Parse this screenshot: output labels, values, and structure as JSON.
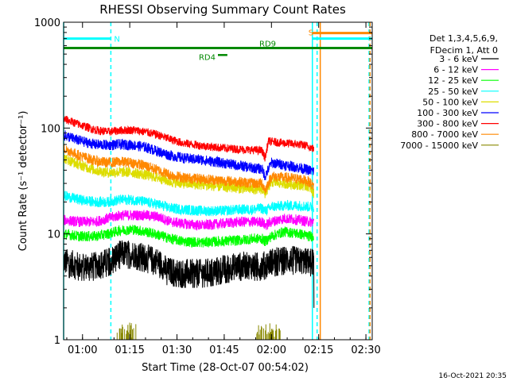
{
  "chart_data": {
    "type": "line",
    "title": "RHESSI Observing Summary Count Rates",
    "xlabel": "Start Time (28-Oct-07 00:54:02)",
    "ylabel": "Count Rate (s⁻¹ detector⁻¹)",
    "y_scale": "log",
    "ylim": [
      1,
      1000
    ],
    "xlim_minutes": [
      0,
      98
    ],
    "x_ticks": [
      {
        "minute": 6,
        "label": "01:00"
      },
      {
        "minute": 21,
        "label": "01:15"
      },
      {
        "minute": 36,
        "label": "01:30"
      },
      {
        "minute": 51,
        "label": "01:45"
      },
      {
        "minute": 66,
        "label": "02:00"
      },
      {
        "minute": 81,
        "label": "02:15"
      },
      {
        "minute": 96,
        "label": "02:30"
      }
    ],
    "y_ticks": [
      {
        "value": 1,
        "label": "1"
      },
      {
        "value": 10,
        "label": "10"
      },
      {
        "value": 100,
        "label": "100"
      },
      {
        "value": 1000,
        "label": "1000"
      }
    ],
    "legend_header": [
      "Det 1,3,4,5,6,9,",
      "FDecim 1, Att 0"
    ],
    "legend_position": "right",
    "series": [
      {
        "name": "3 - 6 keV",
        "color": "#000000",
        "points": [
          [
            0,
            5.5
          ],
          [
            5,
            5
          ],
          [
            10,
            5
          ],
          [
            14,
            5.5
          ],
          [
            18,
            6.5
          ],
          [
            22,
            6.5
          ],
          [
            26,
            6
          ],
          [
            30,
            5.5
          ],
          [
            33,
            4.5
          ],
          [
            38,
            4.3
          ],
          [
            44,
            4.3
          ],
          [
            48,
            4.5
          ],
          [
            52,
            4.8
          ],
          [
            56,
            5
          ],
          [
            60,
            5
          ],
          [
            63,
            5
          ],
          [
            66,
            5.5
          ],
          [
            70,
            5.7
          ],
          [
            73,
            5.7
          ],
          [
            76,
            5.5
          ],
          [
            78,
            5.5
          ],
          [
            79.5,
            5.5
          ]
        ]
      },
      {
        "name": "6 - 12 keV",
        "color": "#ff00ff",
        "points": [
          [
            0,
            13.5
          ],
          [
            5,
            13
          ],
          [
            10,
            13
          ],
          [
            14,
            14
          ],
          [
            18,
            15
          ],
          [
            22,
            15
          ],
          [
            26,
            15
          ],
          [
            30,
            14.5
          ],
          [
            34,
            13
          ],
          [
            38,
            12.5
          ],
          [
            44,
            12
          ],
          [
            50,
            12.5
          ],
          [
            56,
            13
          ],
          [
            60,
            13
          ],
          [
            63,
            13
          ],
          [
            64,
            12
          ],
          [
            66,
            13
          ],
          [
            70,
            14
          ],
          [
            75,
            13.5
          ],
          [
            78,
            13
          ],
          [
            79.5,
            13
          ]
        ]
      },
      {
        "name": "12 - 25 keV",
        "color": "#00ff00",
        "points": [
          [
            0,
            10
          ],
          [
            5,
            9.5
          ],
          [
            10,
            9.5
          ],
          [
            14,
            10
          ],
          [
            18,
            10.8
          ],
          [
            22,
            11
          ],
          [
            26,
            10.5
          ],
          [
            30,
            9.8
          ],
          [
            34,
            9
          ],
          [
            38,
            8.5
          ],
          [
            44,
            8.3
          ],
          [
            50,
            8.5
          ],
          [
            56,
            8.7
          ],
          [
            60,
            9
          ],
          [
            63,
            9
          ],
          [
            64,
            8.5
          ],
          [
            66,
            9.5
          ],
          [
            70,
            10.5
          ],
          [
            75,
            10
          ],
          [
            78,
            9.5
          ],
          [
            79.5,
            9.5
          ]
        ]
      },
      {
        "name": "25 - 50 keV",
        "color": "#00ffff",
        "points": [
          [
            0,
            23
          ],
          [
            5,
            21
          ],
          [
            10,
            20
          ],
          [
            14,
            20
          ],
          [
            18,
            21
          ],
          [
            22,
            21
          ],
          [
            26,
            20
          ],
          [
            30,
            19
          ],
          [
            34,
            17.5
          ],
          [
            38,
            17
          ],
          [
            44,
            16.5
          ],
          [
            50,
            16.5
          ],
          [
            56,
            17
          ],
          [
            60,
            17
          ],
          [
            63,
            17.5
          ],
          [
            64,
            16.5
          ],
          [
            66,
            18
          ],
          [
            70,
            18.5
          ],
          [
            75,
            18.5
          ],
          [
            78,
            18
          ],
          [
            79.5,
            18
          ]
        ]
      },
      {
        "name": "50 - 100 keV",
        "color": "#dddd00",
        "points": [
          [
            0,
            52
          ],
          [
            5,
            45
          ],
          [
            10,
            40
          ],
          [
            14,
            38
          ],
          [
            18,
            38.5
          ],
          [
            22,
            38
          ],
          [
            26,
            36
          ],
          [
            30,
            34
          ],
          [
            34,
            31
          ],
          [
            38,
            30
          ],
          [
            44,
            29
          ],
          [
            50,
            28
          ],
          [
            56,
            27
          ],
          [
            60,
            26.5
          ],
          [
            63,
            26.5
          ],
          [
            64,
            24
          ],
          [
            66,
            31
          ],
          [
            70,
            30
          ],
          [
            75,
            29
          ],
          [
            78,
            28
          ],
          [
            79.5,
            24
          ]
        ]
      },
      {
        "name": "100 - 300 keV",
        "color": "#0000ff",
        "points": [
          [
            0,
            86
          ],
          [
            5,
            76
          ],
          [
            10,
            70
          ],
          [
            14,
            69
          ],
          [
            18,
            70
          ],
          [
            22,
            69
          ],
          [
            26,
            66
          ],
          [
            30,
            60
          ],
          [
            34,
            55
          ],
          [
            38,
            52
          ],
          [
            44,
            50
          ],
          [
            50,
            47
          ],
          [
            56,
            44
          ],
          [
            60,
            42
          ],
          [
            63,
            41
          ],
          [
            64,
            35
          ],
          [
            66,
            47
          ],
          [
            70,
            45
          ],
          [
            75,
            42
          ],
          [
            78,
            40
          ],
          [
            79.5,
            39
          ]
        ]
      },
      {
        "name": "300 - 800 keV",
        "color": "#ff0000",
        "points": [
          [
            0,
            122
          ],
          [
            5,
            108
          ],
          [
            10,
            96
          ],
          [
            14,
            92
          ],
          [
            18,
            95
          ],
          [
            22,
            96
          ],
          [
            26,
            92
          ],
          [
            30,
            86
          ],
          [
            34,
            78
          ],
          [
            38,
            72
          ],
          [
            44,
            68
          ],
          [
            50,
            65
          ],
          [
            56,
            63
          ],
          [
            60,
            62
          ],
          [
            63,
            61
          ],
          [
            64,
            52
          ],
          [
            65,
            75
          ],
          [
            70,
            72
          ],
          [
            75,
            70
          ],
          [
            78,
            67
          ],
          [
            79.5,
            63
          ]
        ]
      },
      {
        "name": "800 - 7000 keV",
        "color": "#ff8800",
        "points": [
          [
            0,
            64
          ],
          [
            5,
            55
          ],
          [
            10,
            49
          ],
          [
            14,
            47
          ],
          [
            18,
            48
          ],
          [
            22,
            47
          ],
          [
            26,
            44
          ],
          [
            30,
            40
          ],
          [
            34,
            36
          ],
          [
            38,
            34
          ],
          [
            44,
            33
          ],
          [
            50,
            32
          ],
          [
            56,
            31
          ],
          [
            60,
            30
          ],
          [
            63,
            30
          ],
          [
            64,
            26
          ],
          [
            66,
            35
          ],
          [
            70,
            34
          ],
          [
            75,
            33
          ],
          [
            78,
            31
          ],
          [
            79.5,
            28
          ]
        ]
      },
      {
        "name": "7000 - 15000 keV",
        "color": "#888800",
        "points": [
          [
            17,
            1.2
          ],
          [
            23,
            1.3
          ],
          [
            61,
            1.2
          ],
          [
            69,
            1.3
          ]
        ]
      }
    ],
    "attenuator_bars": [
      {
        "label": "N",
        "start": 0,
        "end": 15,
        "value": 700,
        "color": "#00ffff"
      },
      {
        "label": "S",
        "start": 79,
        "end": 98,
        "value": 700,
        "color": "#00ffff"
      },
      {
        "label": "S",
        "start": 79,
        "end": 98,
        "value": 790,
        "color": "#ff8800"
      },
      {
        "label": "RD9",
        "start": 0,
        "end": 98,
        "value": 570,
        "color": "#008800"
      },
      {
        "label": "RD4",
        "start": 49,
        "end": 52,
        "value": 490,
        "color": "#008800"
      }
    ],
    "vertical_markers": [
      {
        "minute": 0,
        "color": "#00ffff",
        "style": "solid"
      },
      {
        "minute": 15,
        "color": "#00ffff",
        "style": "dashed"
      },
      {
        "minute": 79,
        "color": "#00ffff",
        "style": "solid"
      },
      {
        "minute": 80.5,
        "color": "#00ffff",
        "style": "dashed"
      },
      {
        "minute": 81.5,
        "color": "#ff8800",
        "style": "solid"
      },
      {
        "minute": 97,
        "color": "#00ffff",
        "style": "dashed"
      },
      {
        "minute": 97.3,
        "color": "#ff8800",
        "style": "dashed"
      }
    ],
    "footer_date": "16-Oct-2021 20:35"
  }
}
